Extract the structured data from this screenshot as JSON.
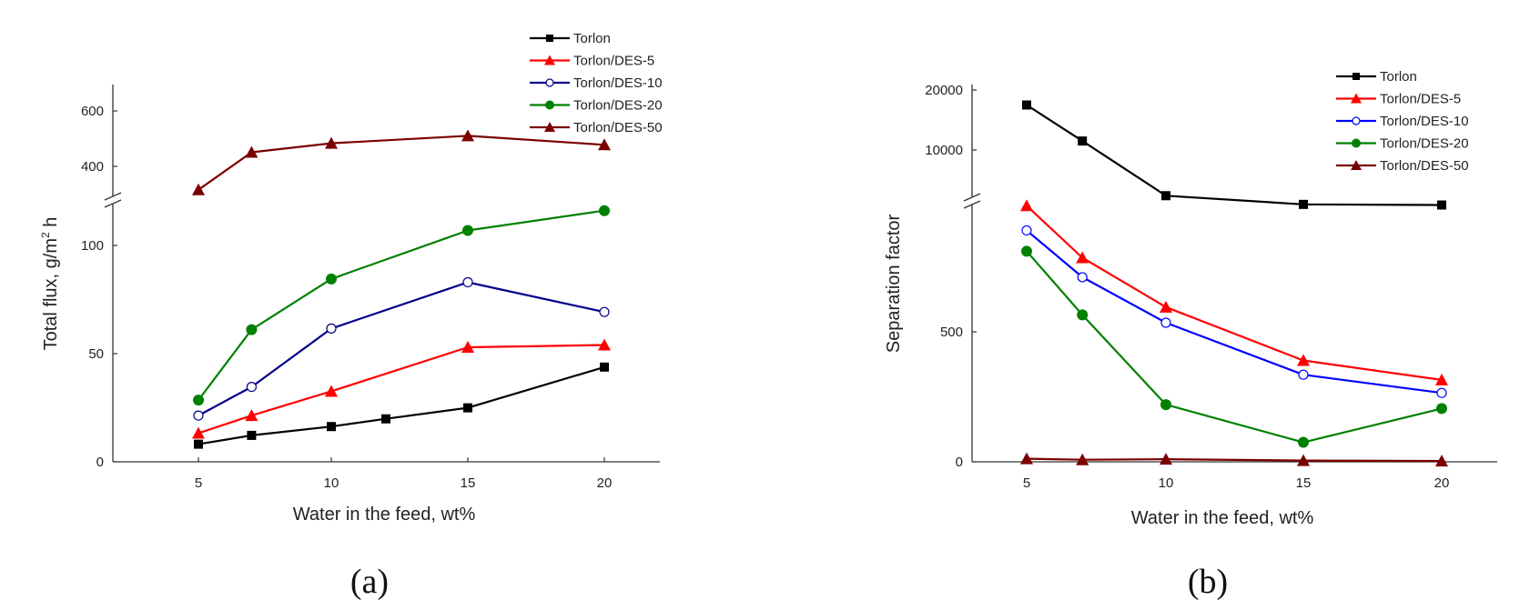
{
  "chart_data": [
    {
      "type": "line",
      "panel": "a",
      "panel_label": "(a)",
      "xlabel": "Water in the feed, wt%",
      "ylabel": "Total flux, g/m² h",
      "ylabel_main": "Total flux, g/m",
      "ylabel_sup": "2",
      "ylabel_end": " h",
      "x_ticks": [
        5,
        10,
        15,
        20
      ],
      "y_ticks_lower": [
        0,
        50,
        100
      ],
      "y_ticks_upper": [
        400,
        600
      ],
      "axis_break": true,
      "xlim": [
        2,
        22
      ],
      "ylim_lower": [
        0,
        118
      ],
      "ylim_upper": [
        330,
        700
      ],
      "legend_position": "top-right",
      "series": [
        {
          "name": "Torlon",
          "color": "#000000",
          "marker": "square",
          "x": [
            5,
            7,
            10,
            12,
            15,
            20
          ],
          "y": [
            8,
            12,
            16,
            19.5,
            24.5,
            43
          ]
        },
        {
          "name": "Torlon/DES-5",
          "color": "#ff0000",
          "marker": "triangle",
          "x": [
            5,
            7,
            10,
            15,
            20
          ],
          "y": [
            13,
            21,
            32,
            52,
            53
          ]
        },
        {
          "name": "Torlon/DES-10",
          "color": "#00008b",
          "marker": "open-circle",
          "x": [
            5,
            7,
            10,
            15,
            20
          ],
          "y": [
            21,
            34,
            60.5,
            81.5,
            68
          ]
        },
        {
          "name": "Torlon/DES-20",
          "color": "#008000",
          "marker": "circle",
          "x": [
            5,
            7,
            10,
            15,
            20
          ],
          "y": [
            28,
            60,
            83,
            105,
            114
          ]
        },
        {
          "name": "Torlon/DES-50",
          "color": "#7a0000",
          "marker": "triangle",
          "x": [
            5,
            7,
            10,
            15,
            20
          ],
          "y": [
            355,
            480,
            510,
            535,
            505
          ]
        }
      ]
    },
    {
      "type": "line",
      "panel": "b",
      "panel_label": "(b)",
      "xlabel": "Water in the feed, wt%",
      "ylabel": "Separation factor",
      "x_ticks": [
        5,
        10,
        15,
        20
      ],
      "y_ticks_lower": [
        0,
        500
      ],
      "y_ticks_upper": [
        10000,
        20000
      ],
      "axis_break": true,
      "xlim": [
        3,
        22
      ],
      "ylim_lower": [
        0,
        1000
      ],
      "ylim_upper": [
        4000,
        22000
      ],
      "legend_position": "top-right",
      "series": [
        {
          "name": "Torlon",
          "color": "#000000",
          "marker": "square",
          "x": [
            5,
            7,
            10,
            15,
            20
          ],
          "y": [
            19000,
            13200,
            4400,
            3000,
            2900
          ]
        },
        {
          "name": "Torlon/DES-5",
          "color": "#ff0000",
          "marker": "triangle",
          "x": [
            5,
            7,
            10,
            15,
            20
          ],
          "y": [
            985,
            785,
            595,
            390,
            315
          ]
        },
        {
          "name": "Torlon/DES-10",
          "color": "#0000ff",
          "marker": "open-circle",
          "x": [
            5,
            7,
            10,
            15,
            20
          ],
          "y": [
            890,
            710,
            535,
            335,
            265
          ]
        },
        {
          "name": "Torlon/DES-20",
          "color": "#008000",
          "marker": "circle",
          "x": [
            5,
            7,
            10,
            15,
            20
          ],
          "y": [
            810,
            565,
            220,
            75,
            205
          ]
        },
        {
          "name": "Torlon/DES-50",
          "color": "#7a0000",
          "marker": "triangle",
          "x": [
            5,
            7,
            10,
            15,
            20
          ],
          "y": [
            12,
            8,
            10,
            5,
            3
          ]
        }
      ]
    }
  ]
}
